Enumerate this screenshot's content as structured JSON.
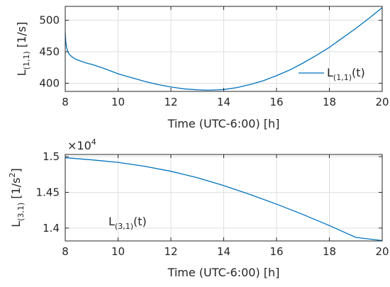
{
  "chart_data": [
    {
      "type": "line",
      "xlabel": "Time (UTC-6:00) [h]",
      "ylabel": {
        "base": "L",
        "sub": "(1,1)",
        "unit": "[1/s]"
      },
      "xlim": [
        8,
        20
      ],
      "ylim": [
        387,
        522
      ],
      "xticks": [
        8,
        10,
        12,
        14,
        16,
        18,
        20
      ],
      "yticks": [
        400,
        450,
        500
      ],
      "grid": true,
      "legend": {
        "placement": "right",
        "base": "L",
        "sub": "(1,1)",
        "suffix": "(t)",
        "boxed": false
      },
      "series": [
        {
          "x": [
            8.0,
            8.02,
            8.05,
            8.1,
            8.15,
            8.25,
            8.4,
            8.6,
            8.8,
            9.0,
            9.5,
            10.0,
            10.5,
            11.0,
            11.5,
            12.0,
            12.5,
            13.0,
            13.4,
            13.8,
            14.0,
            14.5,
            15.0,
            15.5,
            16.0,
            16.5,
            17.0,
            17.5,
            18.0,
            18.5,
            19.0,
            19.5,
            20.0
          ],
          "y": [
            480,
            466,
            457,
            450,
            446,
            442,
            438,
            435,
            432,
            430,
            423,
            415,
            409,
            403,
            398,
            394,
            391,
            389.5,
            389,
            389.5,
            390,
            393,
            398,
            404,
            412,
            421,
            432,
            444,
            457,
            472,
            487,
            503,
            520
          ]
        }
      ]
    },
    {
      "type": "line",
      "xlabel": "Time (UTC-6:00) [h]",
      "ylabel": {
        "base": "L",
        "sub": "(3,1)",
        "unit": "[1/s",
        "unit_sup": "2",
        "unit_close": "]"
      },
      "multiplier": {
        "base": "×10",
        "exp": "4"
      },
      "xlim": [
        8,
        20
      ],
      "ylim": [
        1.382,
        1.503
      ],
      "xticks": [
        8,
        10,
        12,
        14,
        16,
        18,
        20
      ],
      "yticks": [
        1.4,
        1.45,
        1.5
      ],
      "ytick_labels": [
        "1.4",
        "1.45",
        "1.5"
      ],
      "grid": true,
      "annotation": {
        "base": "L",
        "sub": "(3,1)",
        "suffix": "(t)"
      },
      "series": [
        {
          "x": [
            8.0,
            9.0,
            10.0,
            11.0,
            12.0,
            13.0,
            14.0,
            15.0,
            16.0,
            17.0,
            18.0,
            19.0,
            20.0
          ],
          "y": [
            1.4985,
            1.4955,
            1.492,
            1.4865,
            1.4795,
            1.4705,
            1.4595,
            1.447,
            1.4335,
            1.419,
            1.4035,
            1.387,
            1.3825
          ]
        }
      ]
    }
  ]
}
